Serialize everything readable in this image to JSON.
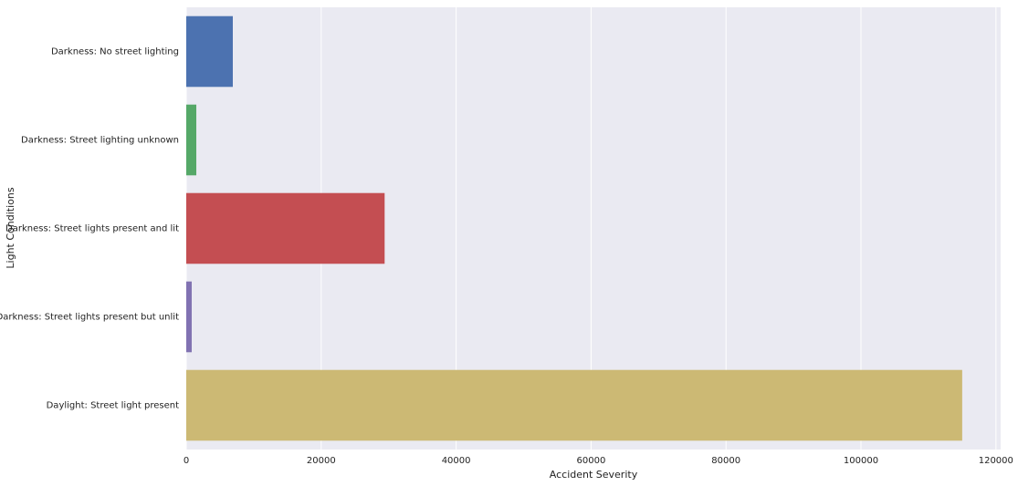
{
  "chart_data": {
    "type": "bar",
    "orientation": "horizontal",
    "categories": [
      "Darkness: No street lighting",
      "Darkness: Street lighting unknown",
      "Darkness: Street lights present and lit",
      "Darkness: Street lights present but unlit",
      "Daylight: Street light present"
    ],
    "values": [
      6900,
      1490,
      29400,
      810,
      115000
    ],
    "colors": [
      "#4c72b0",
      "#55a868",
      "#c44e52",
      "#8172b2",
      "#ccb974"
    ],
    "xlim": [
      0,
      120700
    ],
    "xticks": [
      0,
      20000,
      40000,
      60000,
      80000,
      100000,
      120000
    ],
    "xlabel": "Accident Severity",
    "ylabel": "Light Conditions",
    "grid": true
  }
}
